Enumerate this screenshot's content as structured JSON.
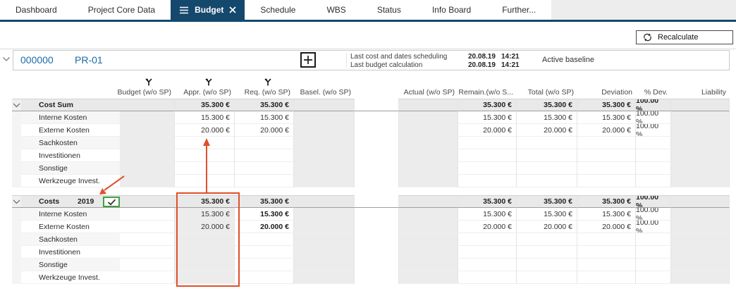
{
  "colors": {
    "accent_navy": "#15486d",
    "link_blue": "#1b6ca8",
    "annotation_orange": "#e04f2a",
    "checkbox_green": "#3fa23f"
  },
  "tabs": [
    {
      "label": "Dashboard",
      "active": false
    },
    {
      "label": "Project Core Data",
      "active": false
    },
    {
      "label": "Budget",
      "active": true
    },
    {
      "label": "Schedule",
      "active": false
    },
    {
      "label": "WBS",
      "active": false
    },
    {
      "label": "Status",
      "active": false
    },
    {
      "label": "Info Board",
      "active": false
    },
    {
      "label": "Further...",
      "active": false
    }
  ],
  "toolbar": {
    "recalculate_label": "Recalculate"
  },
  "project": {
    "id": "000000",
    "code": "PR-01",
    "info": [
      {
        "label": "Last cost and dates scheduling",
        "date": "20.08.19",
        "time": "14:21"
      },
      {
        "label": "Last budget calculation",
        "date": "20.08.19",
        "time": "14:21"
      }
    ],
    "baseline": "Active baseline"
  },
  "table": {
    "columns": [
      {
        "key": "budget",
        "label": "Budget (w/o SP)",
        "filter": true
      },
      {
        "key": "appr",
        "label": "Appr. (w/o SP)",
        "filter": true
      },
      {
        "key": "req",
        "label": "Req. (w/o SP)",
        "filter": true
      },
      {
        "key": "basel",
        "label": "Basel. (w/o SP)",
        "filter": false
      },
      {
        "key": "actual",
        "label": "Actual (w/o SP)",
        "filter": false
      },
      {
        "key": "remain",
        "label": "Remain.(w/o S...",
        "filter": false
      },
      {
        "key": "total",
        "label": "Total (w/o SP)",
        "filter": false
      },
      {
        "key": "deviation",
        "label": "Deviation",
        "filter": false
      },
      {
        "key": "pdev",
        "label": "% Dev.",
        "filter": false
      },
      {
        "key": "liability",
        "label": "Liability",
        "filter": false
      }
    ],
    "sections": [
      {
        "name": "Cost Sum",
        "year": "",
        "checkbox": false,
        "gray_columns": [
          "budget",
          "basel",
          "actual",
          "liability"
        ],
        "bold_columns": [],
        "totals": {
          "appr": "35.300 €",
          "req": "35.300 €",
          "remain": "35.300 €",
          "total": "35.300 €",
          "deviation": "35.300 €",
          "pdev": "100.00 %"
        },
        "rows": [
          {
            "name": "Interne Kosten",
            "appr": "15.300 €",
            "req": "15.300 €",
            "remain": "15.300 €",
            "total": "15.300 €",
            "deviation": "15.300 €",
            "pdev": "100.00 %"
          },
          {
            "name": "Externe Kosten",
            "appr": "20.000 €",
            "req": "20.000 €",
            "remain": "20.000 €",
            "total": "20.000 €",
            "deviation": "20.000 €",
            "pdev": "100.00 %"
          },
          {
            "name": "Sachkosten"
          },
          {
            "name": "Investitionen"
          },
          {
            "name": "Sonstige"
          },
          {
            "name": "Werkzeuge Invest."
          }
        ]
      },
      {
        "name": "Costs",
        "year": "2019",
        "checkbox": true,
        "gray_columns": [
          "appr",
          "basel",
          "actual",
          "liability"
        ],
        "bold_columns": [
          "req"
        ],
        "totals": {
          "appr": "35.300 €",
          "req": "35.300 €",
          "remain": "35.300 €",
          "total": "35.300 €",
          "deviation": "35.300 €",
          "pdev": "100.00 %"
        },
        "rows": [
          {
            "name": "Interne Kosten",
            "appr": "15.300 €",
            "req": "15.300 €",
            "remain": "15.300 €",
            "total": "15.300 €",
            "deviation": "15.300 €",
            "pdev": "100.00 %"
          },
          {
            "name": "Externe Kosten",
            "appr": "20.000 €",
            "req": "20.000 €",
            "remain": "20.000 €",
            "total": "20.000 €",
            "deviation": "20.000 €",
            "pdev": "100.00 %"
          },
          {
            "name": "Sachkosten"
          },
          {
            "name": "Investitionen"
          },
          {
            "name": "Sonstige"
          },
          {
            "name": "Werkzeuge Invest."
          }
        ]
      }
    ]
  },
  "annotations": {
    "color": "#e04f2a",
    "items": [
      "appr-column-highlight-rect",
      "rollup-arrow-up",
      "year-checkbox-pointer-arrow"
    ]
  }
}
